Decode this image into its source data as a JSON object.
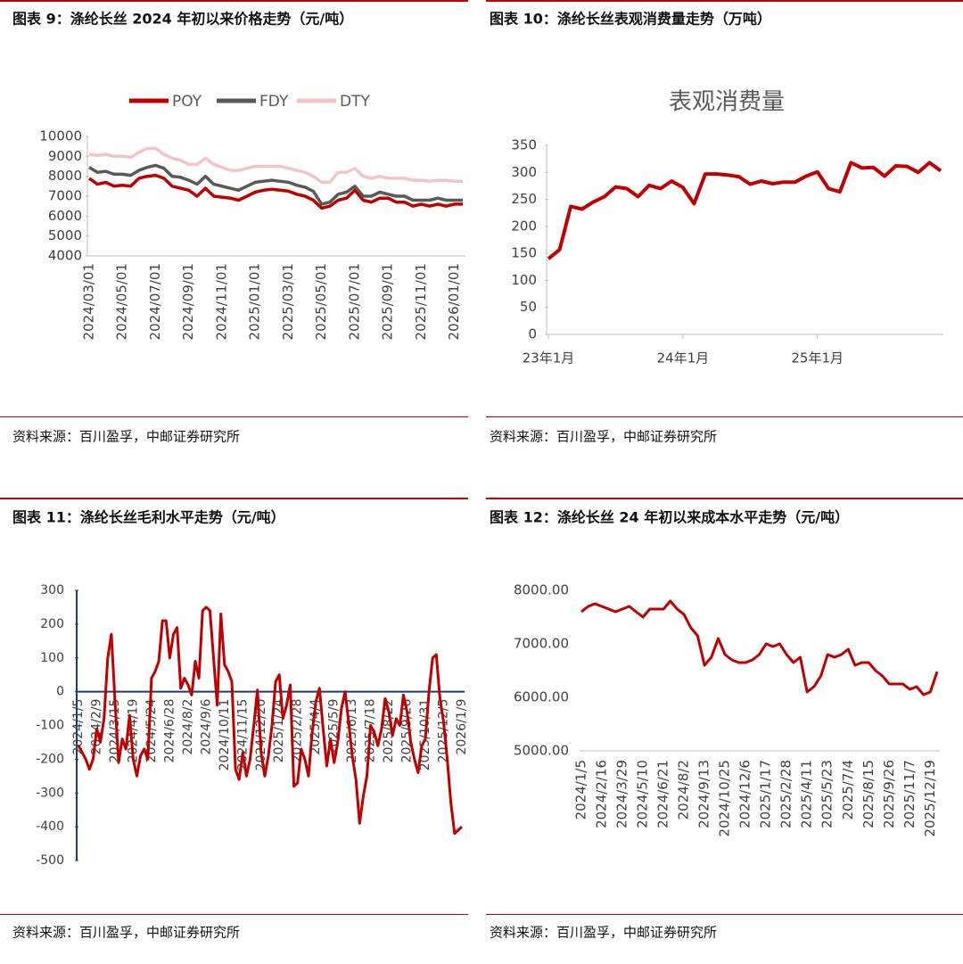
{
  "chart_data": [
    {
      "type": "line",
      "caption": "图表 9：涤纶长丝 2024 年初以来价格走势（元/吨）",
      "source": "资料来源：百川盈孚，中邮证券研究所",
      "legend": "top",
      "categories": [
        "2024/03/01",
        null,
        null,
        null,
        "2024/05/01",
        null,
        null,
        null,
        "2024/07/01",
        null,
        null,
        null,
        "2024/09/01",
        null,
        null,
        null,
        "2024/11/01",
        null,
        null,
        null,
        "2025/01/01",
        null,
        null,
        null,
        "2025/03/01",
        null,
        null,
        null,
        "2025/05/01",
        null,
        null,
        null,
        "2025/07/01",
        null,
        null,
        null,
        "2025/09/01",
        null,
        null,
        null,
        "2025/11/01",
        null,
        null,
        null,
        "2026/01/01",
        null
      ],
      "series": [
        {
          "name": "POY",
          "color": "#c00000",
          "values": [
            7900,
            7600,
            7700,
            7500,
            7550,
            7500,
            7900,
            8000,
            8050,
            7900,
            7500,
            7400,
            7300,
            7000,
            7400,
            7000,
            6950,
            6900,
            6800,
            7000,
            7200,
            7300,
            7350,
            7300,
            7250,
            7100,
            7000,
            6800,
            6400,
            6500,
            6800,
            6900,
            7300,
            6800,
            6700,
            6900,
            6900,
            6700,
            6700,
            6500,
            6600,
            6500,
            6600,
            6500,
            6600,
            6600
          ]
        },
        {
          "name": "FDY",
          "color": "#595959",
          "values": [
            8450,
            8200,
            8250,
            8100,
            8100,
            8050,
            8300,
            8450,
            8550,
            8400,
            8000,
            7950,
            7800,
            7600,
            8000,
            7600,
            7500,
            7400,
            7300,
            7500,
            7700,
            7750,
            7800,
            7750,
            7700,
            7550,
            7450,
            7250,
            6600,
            6700,
            7100,
            7200,
            7500,
            7000,
            7000,
            7200,
            7100,
            7000,
            7000,
            6800,
            6800,
            6800,
            6900,
            6800,
            6800,
            6800
          ]
        },
        {
          "name": "DTY",
          "color": "#f2c4c4",
          "values": [
            9100,
            9050,
            9100,
            9000,
            9000,
            8950,
            9200,
            9400,
            9400,
            9100,
            8900,
            8800,
            8600,
            8600,
            8900,
            8600,
            8450,
            8300,
            8300,
            8400,
            8500,
            8500,
            8500,
            8500,
            8400,
            8300,
            8200,
            8000,
            7700,
            7700,
            8200,
            8200,
            8400,
            8000,
            7900,
            8000,
            7900,
            7900,
            7900,
            7800,
            7800,
            7750,
            7800,
            7800,
            7750,
            7750
          ]
        }
      ],
      "ylim": [
        4000,
        10000
      ],
      "yticks": [
        4000,
        5000,
        6000,
        7000,
        8000,
        9000,
        10000
      ]
    },
    {
      "type": "line",
      "caption": "图表 10：涤纶长丝表观消费量走势（万吨）",
      "source": "资料来源：百川盈孚，中邮证券研究所",
      "title": "表观消费量",
      "categories": [
        "23年1月",
        null,
        null,
        null,
        null,
        null,
        null,
        null,
        null,
        null,
        null,
        null,
        "24年1月",
        null,
        null,
        null,
        null,
        null,
        null,
        null,
        null,
        null,
        null,
        null,
        "25年1月",
        null,
        null,
        null,
        null,
        null,
        null,
        null,
        null,
        null,
        null,
        null
      ],
      "series": [
        {
          "name": "表观消费量",
          "color": "#c00000",
          "values": [
            140,
            157,
            237,
            232,
            245,
            255,
            273,
            270,
            255,
            276,
            270,
            284,
            272,
            242,
            297,
            297,
            295,
            292,
            278,
            284,
            279,
            282,
            282,
            293,
            301,
            270,
            264,
            318,
            308,
            309,
            293,
            312,
            311,
            300,
            318,
            303
          ]
        }
      ],
      "ylim": [
        0,
        350
      ],
      "yticks": [
        0,
        50,
        100,
        150,
        200,
        250,
        300,
        350
      ]
    },
    {
      "type": "line",
      "caption": "图表 11：涤纶长丝毛利水平走势（元/吨）",
      "source": "资料来源：百川盈孚，中邮证券研究所",
      "categories": [
        "2024/1/5",
        null,
        null,
        null,
        null,
        "2024/2/9",
        null,
        null,
        null,
        null,
        "2024/3/15",
        null,
        null,
        null,
        null,
        "2024/4/19",
        null,
        null,
        null,
        null,
        "2024/5/24",
        null,
        null,
        null,
        null,
        "2024/6/28",
        null,
        null,
        null,
        null,
        "2024/8/2",
        null,
        null,
        null,
        null,
        "2024/9/6",
        null,
        null,
        null,
        null,
        "2024/10/11",
        null,
        null,
        null,
        null,
        "2024/11/15",
        null,
        null,
        null,
        null,
        "2024/12/20",
        null,
        null,
        null,
        null,
        "2025/1/24",
        null,
        null,
        null,
        null,
        "2025/2/28",
        null,
        null,
        null,
        null,
        "2025/4/4",
        null,
        null,
        null,
        null,
        "2025/5/9",
        null,
        null,
        null,
        null,
        "2025/6/13",
        null,
        null,
        null,
        null,
        "2025/7/18",
        null,
        null,
        null,
        null,
        "2025/8/22",
        null,
        null,
        null,
        null,
        "2025/9/26",
        null,
        null,
        null,
        null,
        "2025/10/31",
        null,
        null,
        null,
        null,
        "2025/12/5",
        null,
        null,
        null,
        null,
        "2026/1/9"
      ],
      "series": [
        {
          "name": "毛利",
          "color": "#c00000",
          "values": [
            -160,
            -180,
            -200,
            -230,
            -200,
            -110,
            -150,
            -80,
            100,
            170,
            -30,
            -210,
            -140,
            -170,
            -70,
            -200,
            -250,
            -190,
            -170,
            -200,
            40,
            60,
            90,
            210,
            210,
            100,
            170,
            190,
            10,
            40,
            20,
            -10,
            90,
            40,
            240,
            250,
            240,
            100,
            -40,
            230,
            80,
            60,
            30,
            -230,
            -260,
            -180,
            -250,
            -200,
            -100,
            5,
            -180,
            -250,
            -190,
            -100,
            30,
            50,
            -80,
            -40,
            20,
            -280,
            -270,
            -170,
            -200,
            -250,
            -120,
            -30,
            10,
            -110,
            -220,
            -140,
            -210,
            -150,
            -50,
            0,
            -90,
            -190,
            -260,
            -390,
            -310,
            -250,
            -100,
            -120,
            -160,
            -110,
            -20,
            -60,
            -130,
            -80,
            -100,
            -10,
            -60,
            -150,
            -200,
            -240,
            -160,
            -140,
            0,
            100,
            110,
            -20,
            -90,
            -200,
            -330,
            -420,
            -410,
            -400
          ]
        }
      ],
      "ylim": [
        -500,
        300
      ],
      "yticks": [
        -500,
        -400,
        -300,
        -200,
        -100,
        0,
        100,
        200,
        300
      ]
    },
    {
      "type": "line",
      "caption": "图表 12：涤纶长丝 24 年初以来成本水平走势（元/吨）",
      "source": "资料来源：百川盈孚，中邮证券研究所",
      "categories": [
        "2024/1/5",
        null,
        null,
        "2024/2/16",
        null,
        null,
        "2024/3/29",
        null,
        null,
        "2024/5/10",
        null,
        null,
        "2024/6/21",
        null,
        null,
        "2024/8/2",
        null,
        null,
        "2024/9/13",
        null,
        null,
        "2024/10/25",
        null,
        null,
        "2024/12/6",
        null,
        null,
        "2025/1/17",
        null,
        null,
        "2025/2/28",
        null,
        null,
        "2025/4/11",
        null,
        null,
        "2025/5/23",
        null,
        null,
        "2025/7/4",
        null,
        null,
        "2025/8/15",
        null,
        null,
        "2025/9/26",
        null,
        null,
        "2025/11/7",
        null,
        null,
        "2025/12/19",
        null
      ],
      "series": [
        {
          "name": "成本",
          "color": "#c00000",
          "values": [
            7600,
            7700,
            7750,
            7700,
            7650,
            7600,
            7650,
            7700,
            7600,
            7500,
            7650,
            7650,
            7650,
            7800,
            7650,
            7550,
            7300,
            7150,
            6600,
            6750,
            7100,
            6800,
            6700,
            6650,
            6650,
            6700,
            6800,
            7000,
            6950,
            7000,
            6800,
            6650,
            6750,
            6100,
            6200,
            6400,
            6800,
            6750,
            6800,
            6900,
            6600,
            6650,
            6650,
            6500,
            6400,
            6250,
            6250,
            6250,
            6150,
            6200,
            6050,
            6100,
            6480
          ]
        }
      ],
      "ylim": [
        5000,
        8000
      ],
      "yticks": [
        {
          "value": 5000,
          "label": "5000.00"
        },
        {
          "value": 6000,
          "label": "6000.00"
        },
        {
          "value": 7000,
          "label": "7000.00"
        },
        {
          "value": 8000,
          "label": "8000.00"
        }
      ]
    }
  ]
}
